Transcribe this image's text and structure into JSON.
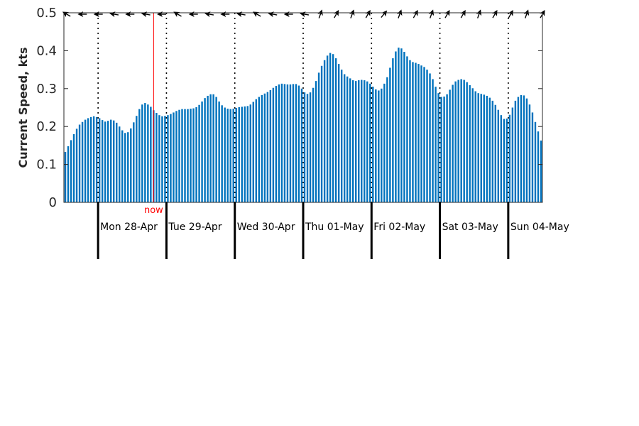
{
  "chart_data": {
    "type": "bar",
    "ylabel": "Current Speed, kts",
    "ylim": [
      0,
      0.5
    ],
    "yticks": [
      0,
      0.1,
      0.2,
      0.3,
      0.4,
      0.5
    ],
    "ytick_labels": [
      "0",
      "0.1",
      "0.2",
      "0.3",
      "0.4",
      "0.5"
    ],
    "x_start": "Sun 27-Apr 12:00",
    "x_end": "Sun 04-May 18:00",
    "interval_hours": 1,
    "day_labels": [
      "Mon 28-Apr",
      "Tue 29-Apr",
      "Wed 30-Apr",
      "Thu 01-May",
      "Fri 02-May",
      "Sat 03-May",
      "Sun 04-May"
    ],
    "now_label": "now",
    "now_time": "Mon 28-Apr 19:00",
    "bar_color": "#0072bd",
    "now_color": "#ff0000",
    "direction_arrows": true,
    "values": [
      0.133,
      0.148,
      0.164,
      0.18,
      0.194,
      0.205,
      0.212,
      0.218,
      0.222,
      0.225,
      0.227,
      0.225,
      0.222,
      0.217,
      0.213,
      0.215,
      0.218,
      0.216,
      0.21,
      0.2,
      0.19,
      0.183,
      0.185,
      0.195,
      0.211,
      0.228,
      0.246,
      0.258,
      0.262,
      0.258,
      0.252,
      0.243,
      0.236,
      0.23,
      0.227,
      0.228,
      0.23,
      0.233,
      0.237,
      0.241,
      0.244,
      0.246,
      0.246,
      0.246,
      0.247,
      0.248,
      0.251,
      0.257,
      0.266,
      0.275,
      0.281,
      0.285,
      0.285,
      0.278,
      0.266,
      0.256,
      0.25,
      0.247,
      0.246,
      0.247,
      0.249,
      0.251,
      0.252,
      0.253,
      0.254,
      0.258,
      0.265,
      0.272,
      0.278,
      0.283,
      0.287,
      0.291,
      0.296,
      0.302,
      0.307,
      0.311,
      0.313,
      0.312,
      0.311,
      0.311,
      0.312,
      0.312,
      0.308,
      0.3,
      0.29,
      0.286,
      0.29,
      0.302,
      0.32,
      0.342,
      0.36,
      0.375,
      0.387,
      0.394,
      0.391,
      0.38,
      0.365,
      0.35,
      0.338,
      0.332,
      0.327,
      0.322,
      0.32,
      0.322,
      0.323,
      0.322,
      0.319,
      0.313,
      0.305,
      0.298,
      0.295,
      0.3,
      0.313,
      0.33,
      0.355,
      0.38,
      0.398,
      0.408,
      0.406,
      0.397,
      0.385,
      0.375,
      0.37,
      0.368,
      0.365,
      0.361,
      0.357,
      0.35,
      0.34,
      0.325,
      0.305,
      0.288,
      0.278,
      0.279,
      0.285,
      0.297,
      0.31,
      0.319,
      0.323,
      0.325,
      0.323,
      0.317,
      0.309,
      0.301,
      0.293,
      0.288,
      0.286,
      0.284,
      0.281,
      0.276,
      0.268,
      0.257,
      0.244,
      0.23,
      0.22,
      0.221,
      0.231,
      0.25,
      0.268,
      0.278,
      0.283,
      0.282,
      0.274,
      0.258,
      0.237,
      0.212,
      0.187,
      0.163
    ],
    "directions_deg": [
      300,
      270,
      270,
      280,
      270,
      280,
      270,
      300,
      270,
      280,
      270,
      280,
      300,
      280,
      270,
      280,
      20,
      30,
      20,
      30,
      40,
      20,
      30,
      20,
      30,
      30,
      20,
      30,
      30,
      20,
      30
    ]
  }
}
